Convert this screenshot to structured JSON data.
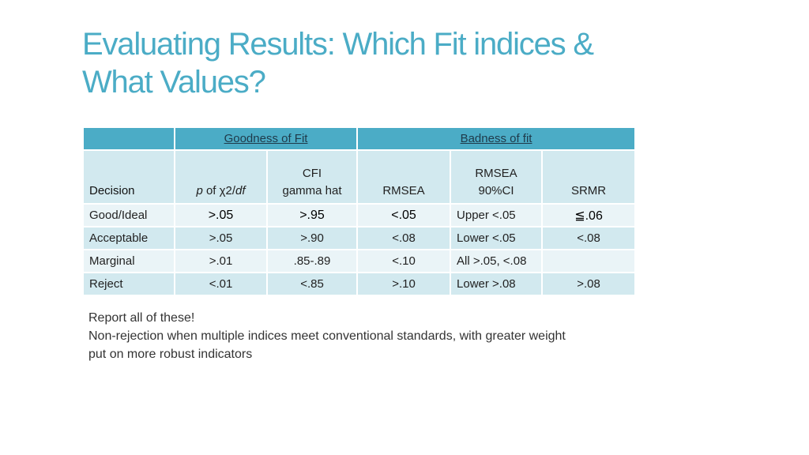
{
  "title": {
    "line1": "Evaluating Results: Which Fit indices &",
    "line2": "What Values?"
  },
  "table": {
    "group_headers": {
      "goodness": "Goodness of Fit",
      "badness": "Badness of fit"
    },
    "columns": {
      "decision": "Decision",
      "p_italic": "p",
      "p_mid": " of χ2/",
      "p_df": "df",
      "cfi_line1": "CFI",
      "cfi_line2": "gamma hat",
      "rmsea": "RMSEA",
      "rmsea_ci_line1": "RMSEA",
      "rmsea_ci_line2": "90%CI",
      "srmr": "SRMR"
    },
    "rows": [
      {
        "decision": "Good/Ideal",
        "p": ">.05",
        "cfi": ">.95",
        "rmsea": "<.05",
        "ci": "Upper <.05",
        "srmr": "≦.06"
      },
      {
        "decision": "Acceptable",
        "p": ">.05",
        "cfi": ">.90",
        "rmsea": "<.08",
        "ci": "Lower <.05",
        "srmr": "<.08"
      },
      {
        "decision": "Marginal",
        "p": ">.01",
        "cfi": ".85-.89",
        "rmsea": "<.10",
        "ci": "All >.05, <.08",
        "srmr": ""
      },
      {
        "decision": "Reject",
        "p": "<.01",
        "cfi": "<.85",
        "rmsea": ">.10",
        "ci": "Lower >.08",
        "srmr": ">.08"
      }
    ]
  },
  "notes": {
    "line1": "Report all of these!",
    "line2": "Non-rejection when multiple indices meet conventional standards, with greater weight",
    "line3": "put on more robust indicators"
  },
  "colors": {
    "accent": "#4bacc6",
    "header_band": "#d2e9ef",
    "row_light": "#eaf4f7"
  }
}
